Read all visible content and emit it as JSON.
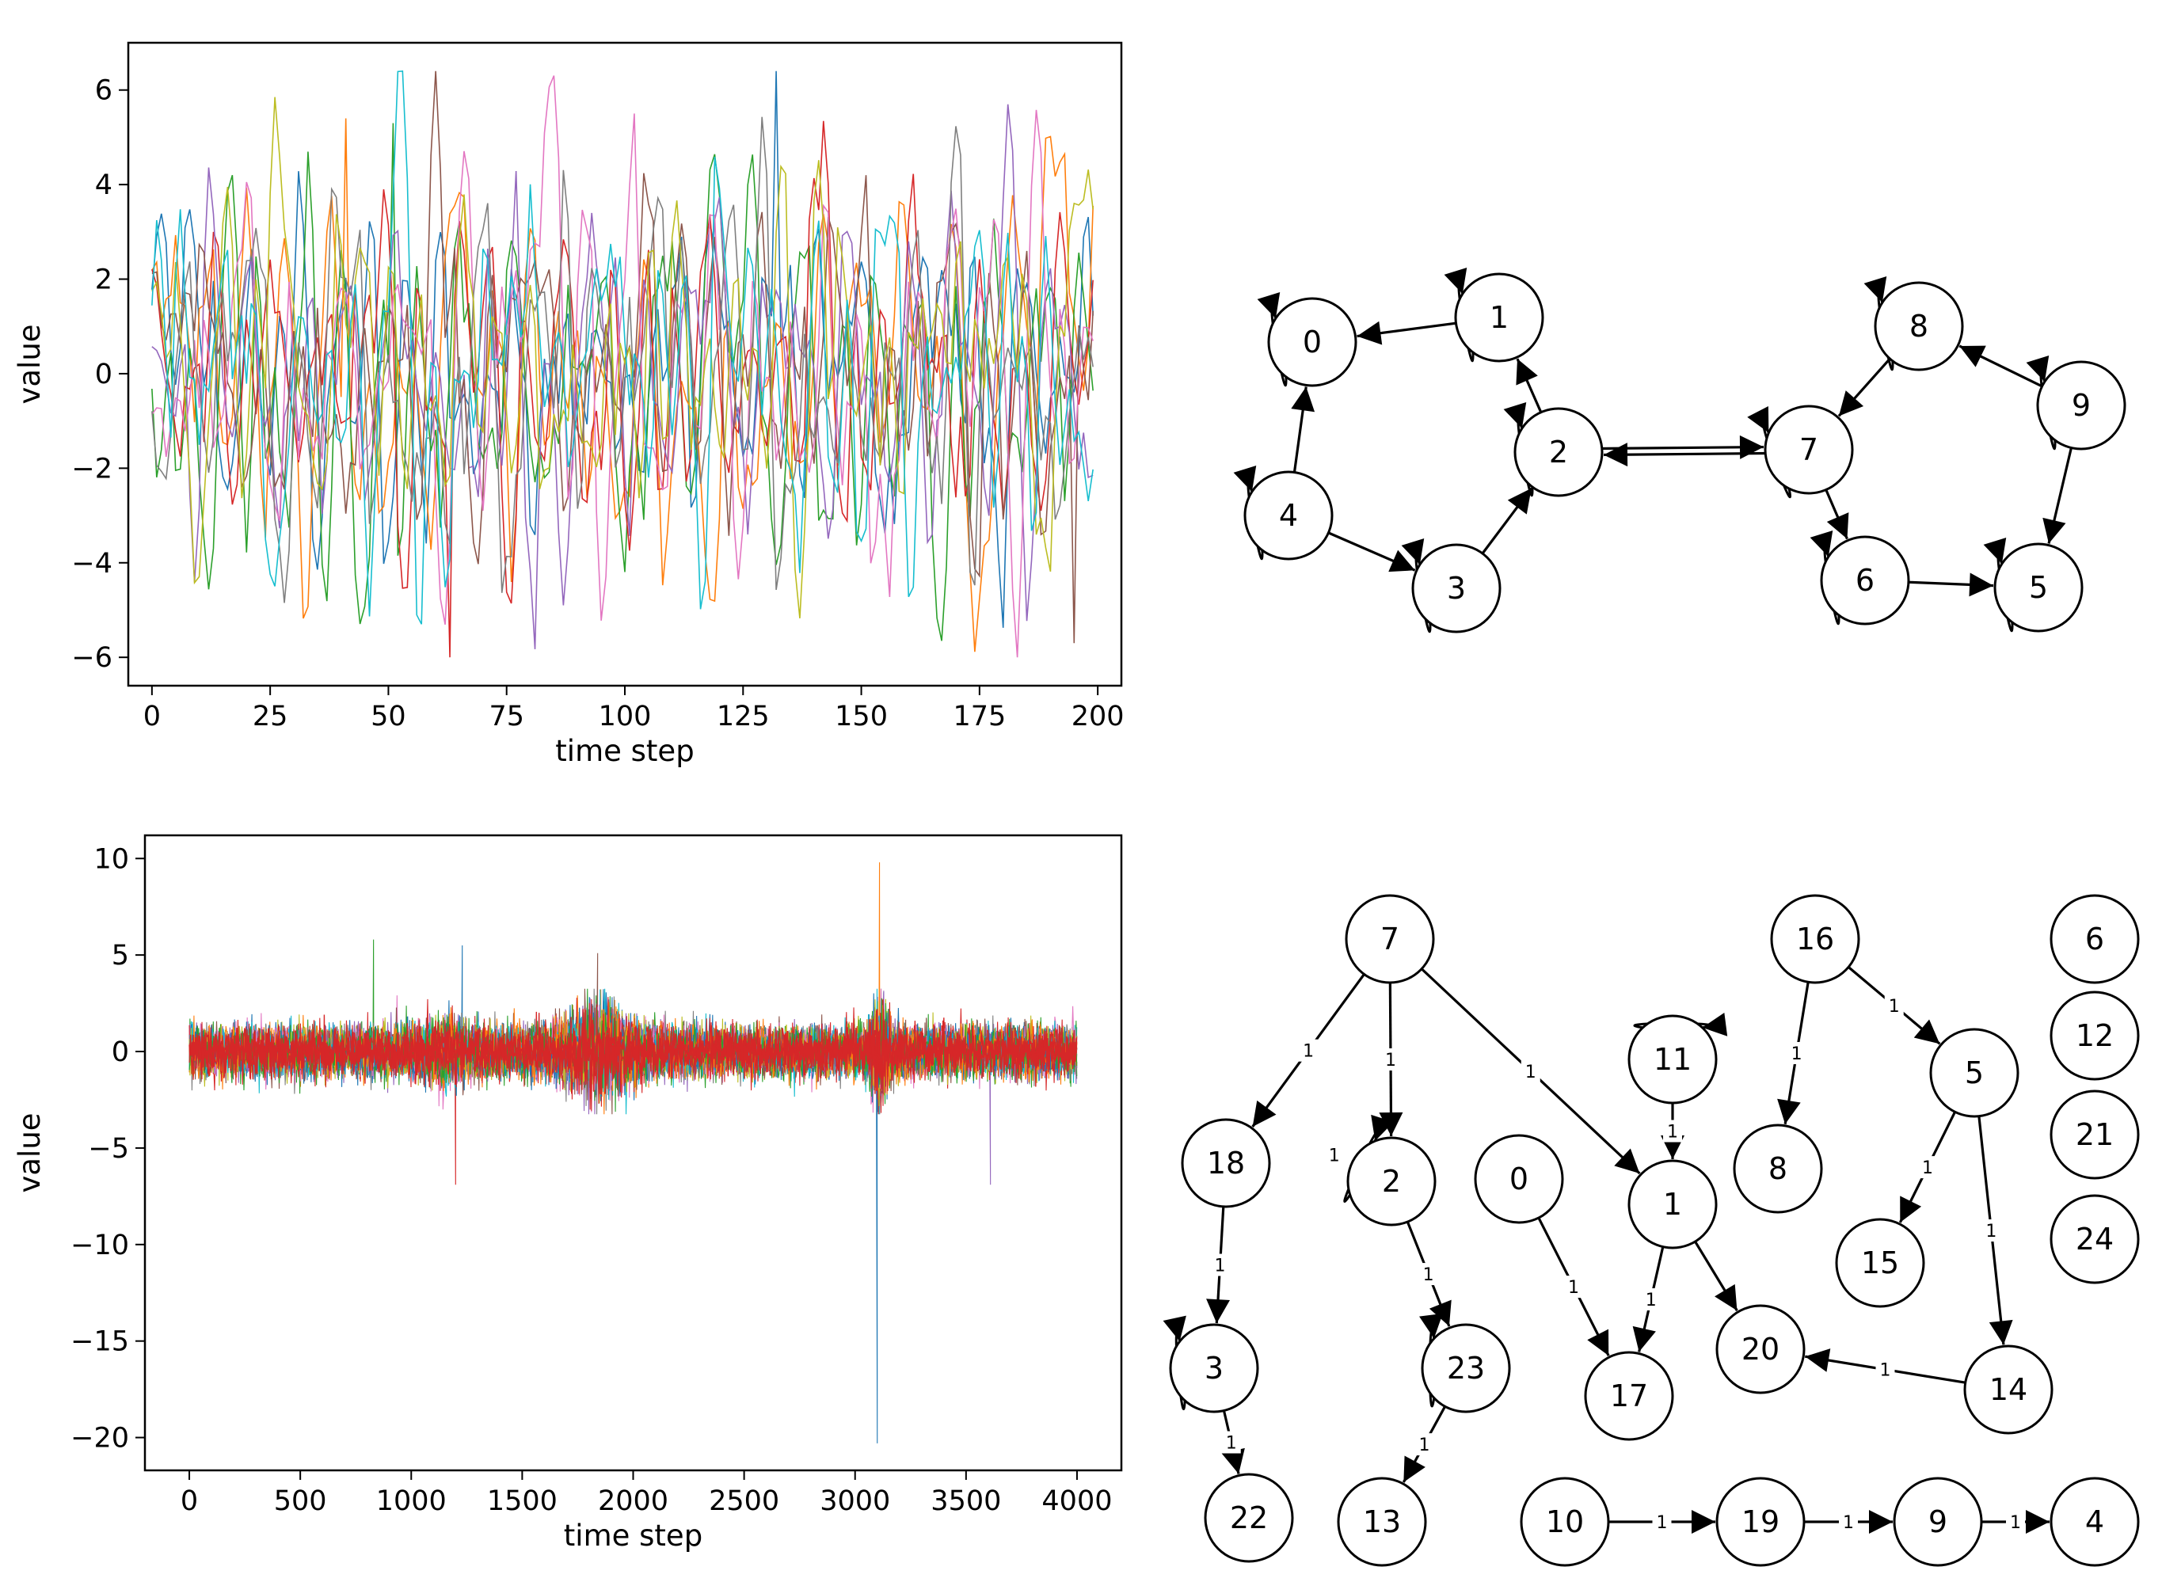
{
  "chart_data": [
    {
      "type": "line",
      "title": "",
      "xlabel": "time step",
      "ylabel": "value",
      "xlim": [
        -5,
        205
      ],
      "ylim": [
        -6.6,
        7.0
      ],
      "xticks": [
        0,
        25,
        50,
        75,
        100,
        125,
        150,
        175,
        200
      ],
      "xtick_labels": [
        "0",
        "25",
        "50",
        "75",
        "100",
        "125",
        "150",
        "175",
        "200"
      ],
      "yticks": [
        -6,
        -4,
        -2,
        0,
        2,
        4,
        6
      ],
      "ytick_labels": [
        "−6",
        "−4",
        "−2",
        "0",
        "2",
        "4",
        "6"
      ],
      "x_range": [
        0,
        199
      ],
      "series_count": 10,
      "grid": false,
      "legend": "none",
      "series_colors": [
        "#1f77b4",
        "#ff7f0e",
        "#2ca02c",
        "#d62728",
        "#9467bd",
        "#8c564b",
        "#e377c2",
        "#7f7f7f",
        "#bcbd22",
        "#17becf"
      ],
      "value_range": [
        -6.0,
        6.4
      ],
      "peaks": [
        {
          "x": 132,
          "y": 6.4
        },
        {
          "x": 41,
          "y": 5.4
        },
        {
          "x": 51,
          "y": 5.3
        },
        {
          "x": 63,
          "y": -6.0
        },
        {
          "x": 87,
          "y": -4.9
        },
        {
          "x": 195,
          "y": -5.7
        }
      ]
    },
    {
      "type": "diagram",
      "title": "",
      "nodes": [
        "0",
        "1",
        "2",
        "3",
        "4",
        "5",
        "6",
        "7",
        "8",
        "9"
      ],
      "edges": [
        {
          "from": "1",
          "to": "0"
        },
        {
          "from": "4",
          "to": "0"
        },
        {
          "from": "2",
          "to": "1"
        },
        {
          "from": "3",
          "to": "2"
        },
        {
          "from": "7",
          "to": "2"
        },
        {
          "from": "2",
          "to": "7"
        },
        {
          "from": "4",
          "to": "3"
        },
        {
          "from": "8",
          "to": "7"
        },
        {
          "from": "9",
          "to": "8"
        },
        {
          "from": "7",
          "to": "6"
        },
        {
          "from": "6",
          "to": "5"
        },
        {
          "from": "9",
          "to": "5"
        }
      ],
      "self_loops": [
        "0",
        "1",
        "2",
        "3",
        "4",
        "5",
        "6",
        "7",
        "8",
        "9"
      ]
    },
    {
      "type": "line",
      "title": "",
      "xlabel": "time step",
      "ylabel": "value",
      "xlim": [
        -200,
        4200
      ],
      "ylim": [
        -21.7,
        11.2
      ],
      "xticks": [
        0,
        500,
        1000,
        1500,
        2000,
        2500,
        3000,
        3500,
        4000
      ],
      "xtick_labels": [
        "0",
        "500",
        "1000",
        "1500",
        "2000",
        "2500",
        "3000",
        "3500",
        "4000"
      ],
      "yticks": [
        -20,
        -15,
        -10,
        -5,
        0,
        5,
        10
      ],
      "ytick_labels": [
        "−20",
        "−15",
        "−10",
        "−5",
        "0",
        "5",
        "10"
      ],
      "x_range": [
        0,
        3999
      ],
      "series_count": 25,
      "grid": false,
      "legend": "none",
      "series_colors": [
        "#1f77b4",
        "#ff7f0e",
        "#2ca02c",
        "#d62728",
        "#9467bd",
        "#8c564b",
        "#e377c2",
        "#7f7f7f",
        "#bcbd22",
        "#17becf"
      ],
      "band": {
        "low": -2.5,
        "high": 2.5
      },
      "spikes": [
        {
          "x": 3100,
          "y": -20.3
        },
        {
          "x": 3110,
          "y": 9.8
        },
        {
          "x": 830,
          "y": 5.8
        },
        {
          "x": 1200,
          "y": -6.9
        },
        {
          "x": 3610,
          "y": -6.9
        },
        {
          "x": 1840,
          "y": 5.1
        },
        {
          "x": 1230,
          "y": 5.5
        }
      ]
    },
    {
      "type": "diagram",
      "title": "",
      "nodes": [
        "0",
        "1",
        "2",
        "3",
        "4",
        "5",
        "6",
        "7",
        "8",
        "9",
        "10",
        "11",
        "12",
        "13",
        "14",
        "15",
        "16",
        "17",
        "18",
        "19",
        "20",
        "21",
        "22",
        "23",
        "24"
      ],
      "edges": [
        {
          "from": "7",
          "to": "18",
          "label": "1"
        },
        {
          "from": "7",
          "to": "2",
          "label": "1"
        },
        {
          "from": "7",
          "to": "1",
          "label": "1"
        },
        {
          "from": "16",
          "to": "8",
          "label": "1"
        },
        {
          "from": "16",
          "to": "5",
          "label": "1"
        },
        {
          "from": "11",
          "to": "1",
          "label": "1"
        },
        {
          "from": "5",
          "to": "15",
          "label": "1"
        },
        {
          "from": "5",
          "to": "14",
          "label": "1"
        },
        {
          "from": "18",
          "to": "3",
          "label": "1"
        },
        {
          "from": "2",
          "to": "23",
          "label": "1"
        },
        {
          "from": "0",
          "to": "17",
          "label": "1"
        },
        {
          "from": "1",
          "to": "17",
          "label": "1"
        },
        {
          "from": "1",
          "to": "20",
          "label": ""
        },
        {
          "from": "14",
          "to": "20",
          "label": "1"
        },
        {
          "from": "3",
          "to": "22",
          "label": "1"
        },
        {
          "from": "23",
          "to": "13",
          "label": "1"
        },
        {
          "from": "10",
          "to": "19",
          "label": "1"
        },
        {
          "from": "19",
          "to": "9",
          "label": "1"
        },
        {
          "from": "9",
          "to": "4",
          "label": "1"
        }
      ],
      "self_loops": [
        {
          "node": "2",
          "label": "1"
        },
        {
          "node": "3",
          "label": ""
        },
        {
          "node": "11",
          "label": ""
        },
        {
          "node": "23",
          "label": ""
        }
      ]
    }
  ]
}
